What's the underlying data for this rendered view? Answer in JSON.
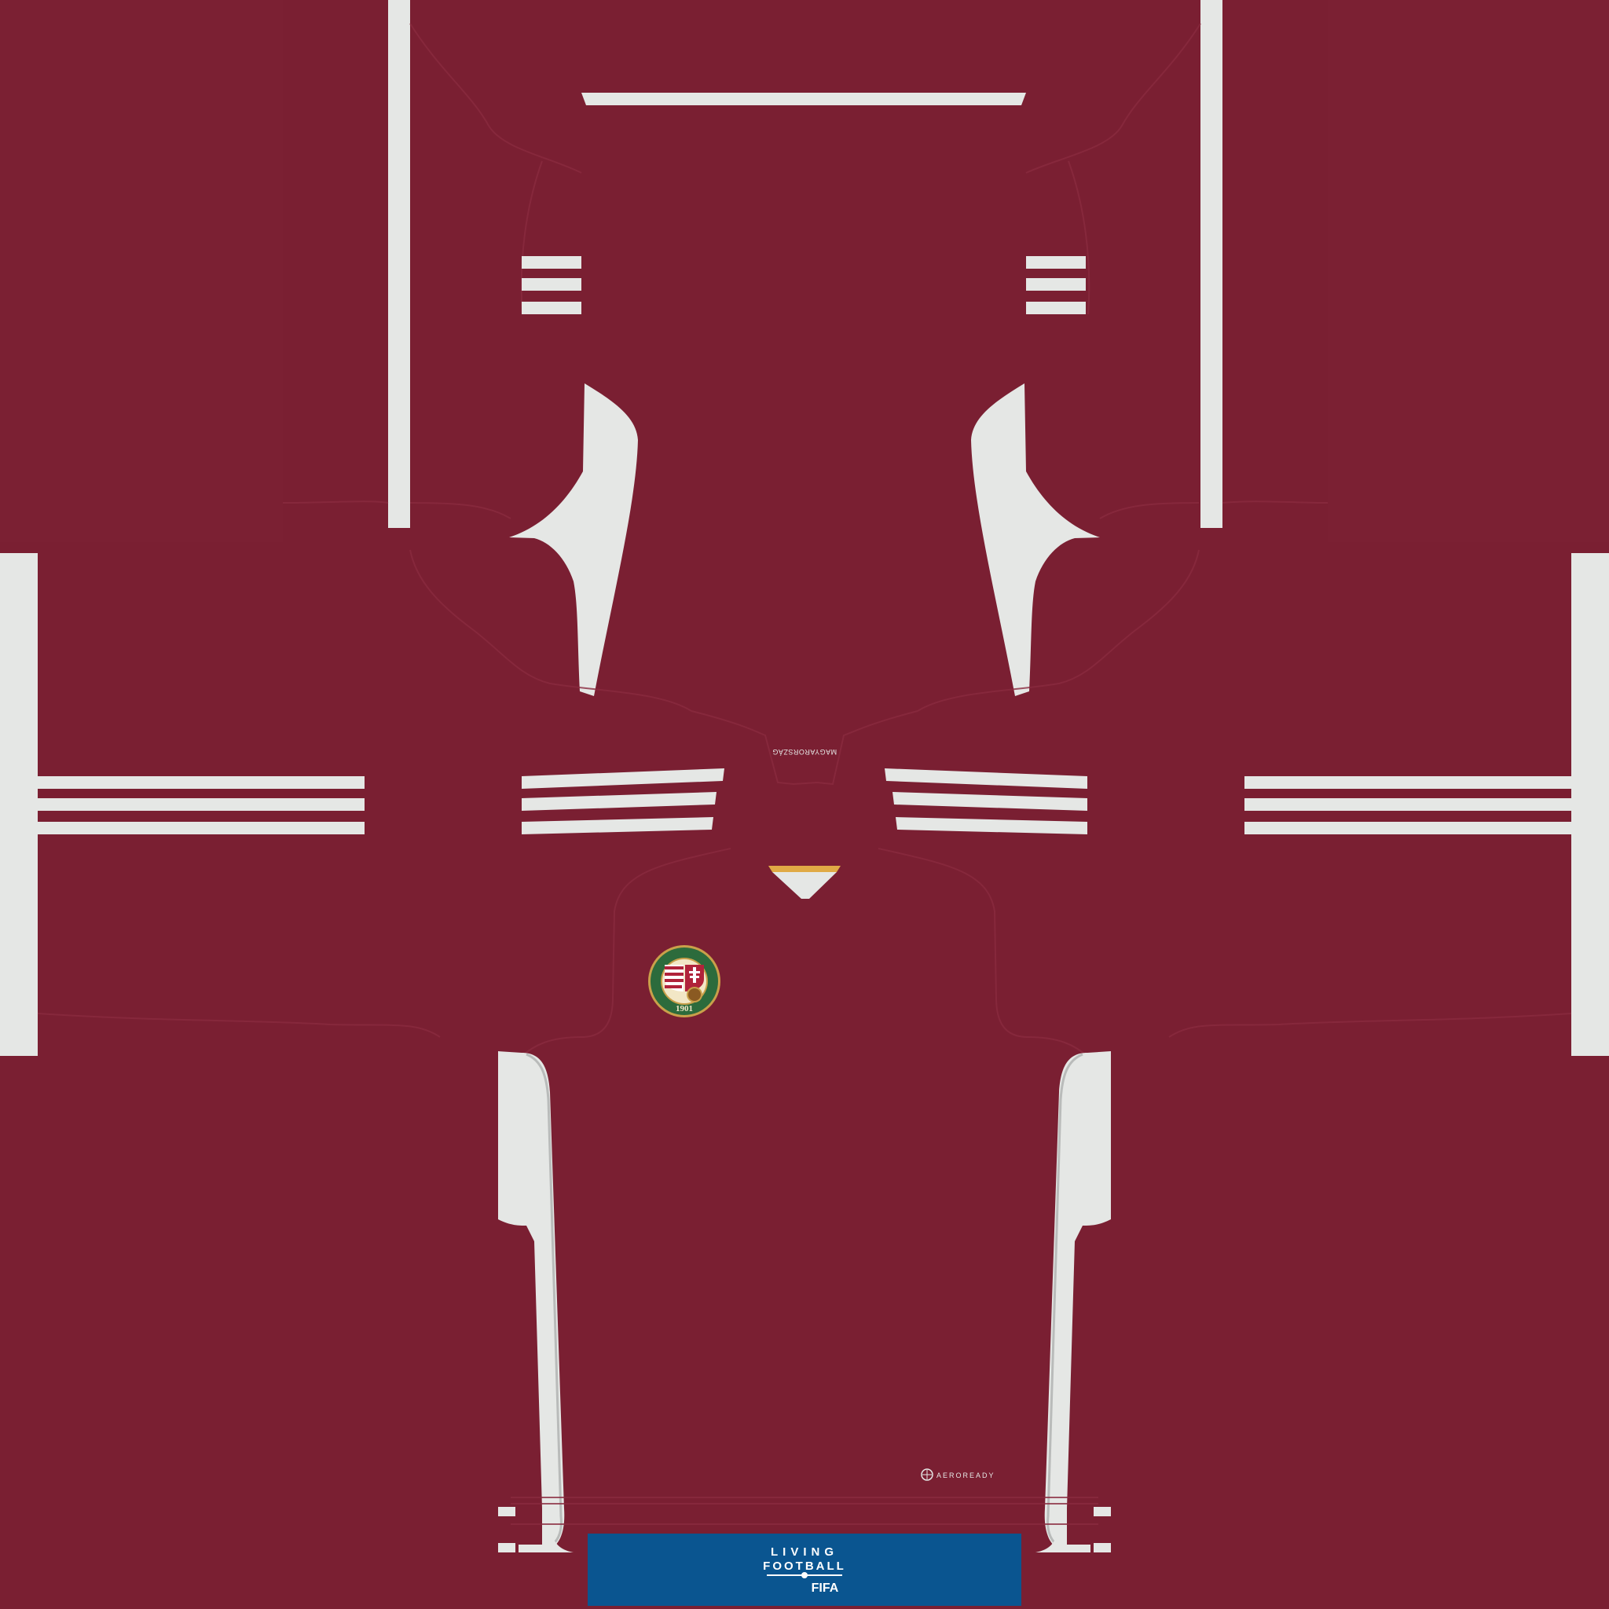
{
  "kit": {
    "colors": {
      "base": "#7a1f32",
      "trim": "#e5e7e5",
      "seam": "#6b1a2b",
      "badge": "#0a5590",
      "crest_gold": "#c9a04a",
      "crest_green": "#2c6b3c",
      "notch_gold": "#e0aa45"
    },
    "neck_tag": {
      "text": "MAGYARORSZÁG"
    },
    "crest": {
      "ring_text": "MAGYAR LABDARÚGÓ SZÖVETSÉG",
      "year": "1901",
      "icon": "hungary-crest-icon"
    },
    "aeroready": {
      "icon": "aeroready-logo-icon",
      "text": "AEROREADY"
    },
    "sleeve_badge": {
      "line1": "LIVING",
      "line2": "FOOTBALL",
      "line3": "FIFA",
      "icon": "fifa-ball-icon"
    }
  }
}
